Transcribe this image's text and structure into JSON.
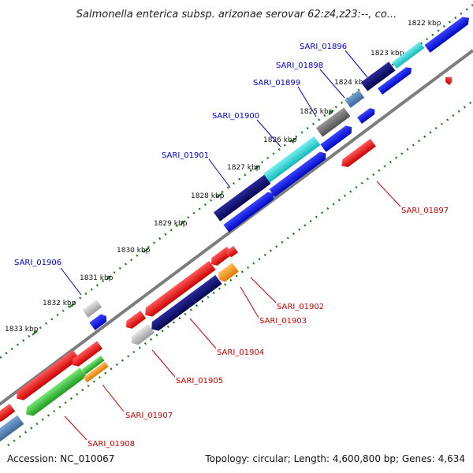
{
  "title": "Salmonella enterica subsp. arizonae serovar 62:z4,z23:--, co...",
  "accession": "Accession: NC_010067",
  "summary": "Topology: circular; Length: 4,600,800 bp; Genes: 4,634",
  "tick_labels": [
    "1822 kbp",
    "1823 kbp",
    "1824 kbp",
    "1825 kbp",
    "1826 kbp",
    "1827 kbp",
    "1828 kbp",
    "1829 kbp",
    "1830 kbp",
    "1831 kbp",
    "1832 kbp",
    "1833 kbp"
  ],
  "gene_labels": {
    "forward": [
      "SARI_01896",
      "SARI_01898",
      "SARI_01899",
      "SARI_01900",
      "SARI_01901",
      "SARI_01906"
    ],
    "reverse": [
      "SARI_01897",
      "SARI_01902",
      "SARI_01903",
      "SARI_01904",
      "SARI_01905",
      "SARI_01907",
      "SARI_01908"
    ]
  },
  "colors": {
    "forward_label": "#0000cc",
    "reverse_label": "#cc0000",
    "navy": "#0a0a6e",
    "cyan": "#22d3d3",
    "blue": "#0a14e6",
    "steel": "#4f82b4",
    "gray": "#6f6f6f",
    "red": "#ee1111",
    "orange": "#ff9911",
    "green": "#33bb33",
    "silver": "#bdbdbd",
    "backbone": "#8a8a8a",
    "dots": "#1a7a1a"
  }
}
